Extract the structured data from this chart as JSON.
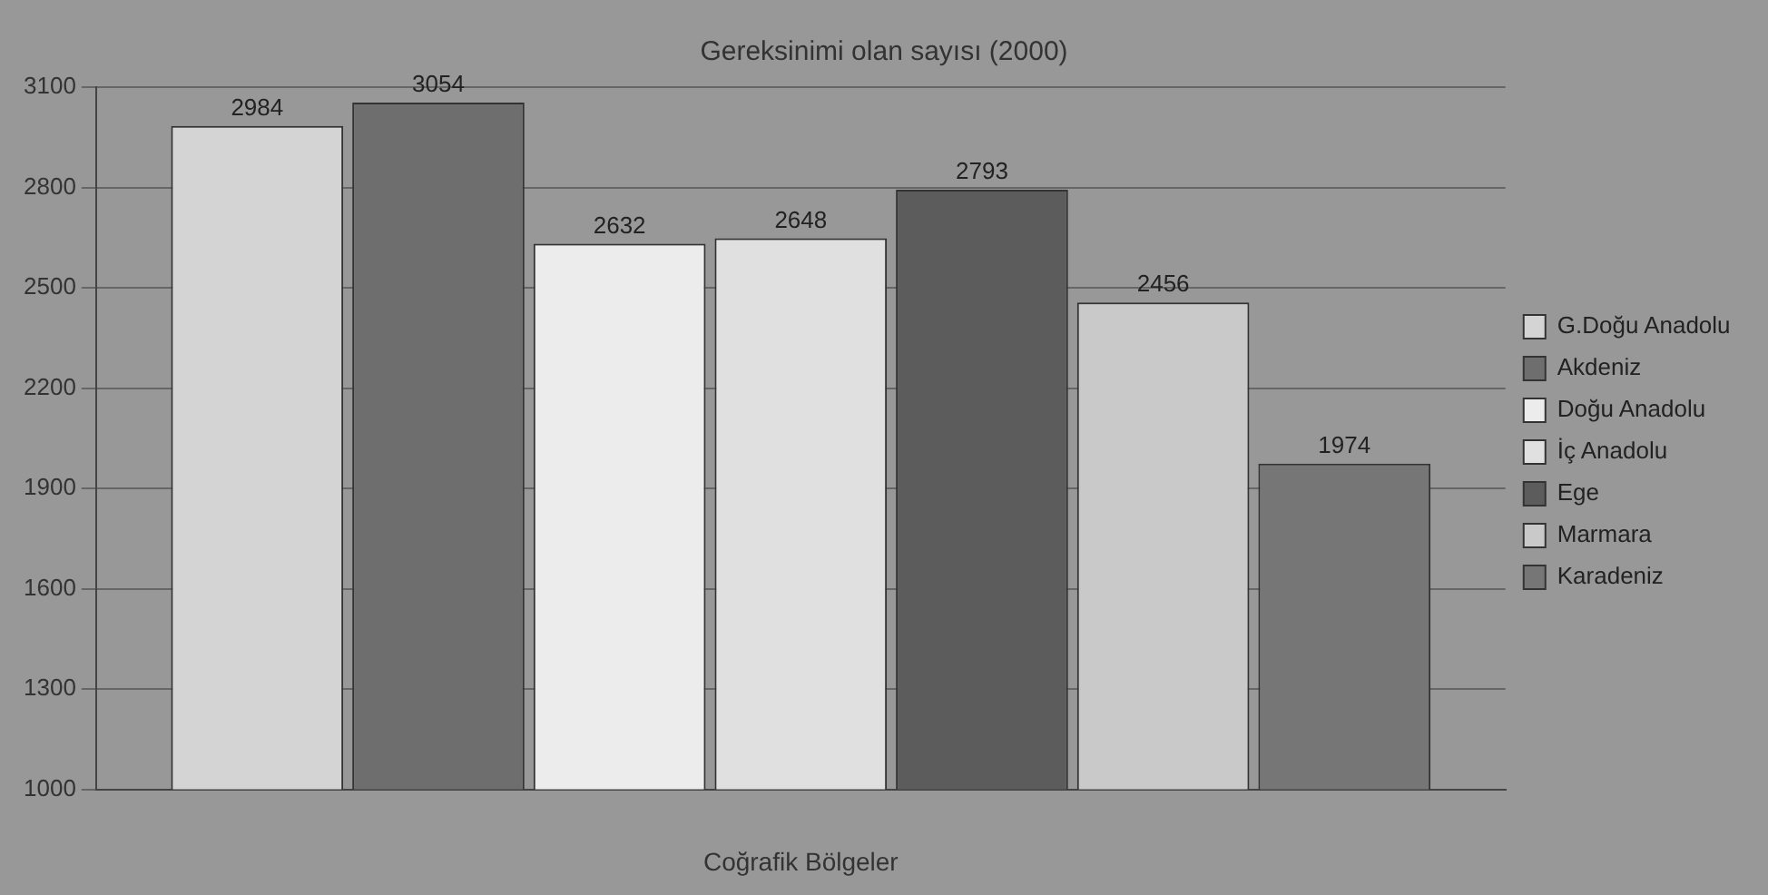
{
  "chart_data": {
    "type": "bar",
    "title": "Gereksinimi olan sayısı (2000)",
    "xlabel": "Coğrafik Bölgeler",
    "categories": [
      null
    ],
    "series": [
      {
        "name": "G.Doğu Anadolu",
        "color": "#d4d4d4",
        "values": [
          2984
        ]
      },
      {
        "name": "Akdeniz",
        "color": "#6e6e6e",
        "values": [
          3054
        ]
      },
      {
        "name": "Doğu Anadolu",
        "color": "#ececec",
        "values": [
          2632
        ]
      },
      {
        "name": "İç Anadolu",
        "color": "#e0e0e0",
        "values": [
          2648
        ]
      },
      {
        "name": "Ege",
        "color": "#5c5c5c",
        "values": [
          2793
        ]
      },
      {
        "name": "Marmara",
        "color": "#c9c9c9",
        "values": [
          2456
        ]
      },
      {
        "name": "Karadeniz",
        "color": "#767676",
        "values": [
          1974
        ]
      }
    ],
    "ylim": [
      1000,
      3100
    ],
    "yticks": [
      1000,
      1300,
      1600,
      1900,
      2200,
      2500,
      2800,
      3100
    ],
    "grid": "y",
    "legend": "right",
    "data_labels": true
  }
}
